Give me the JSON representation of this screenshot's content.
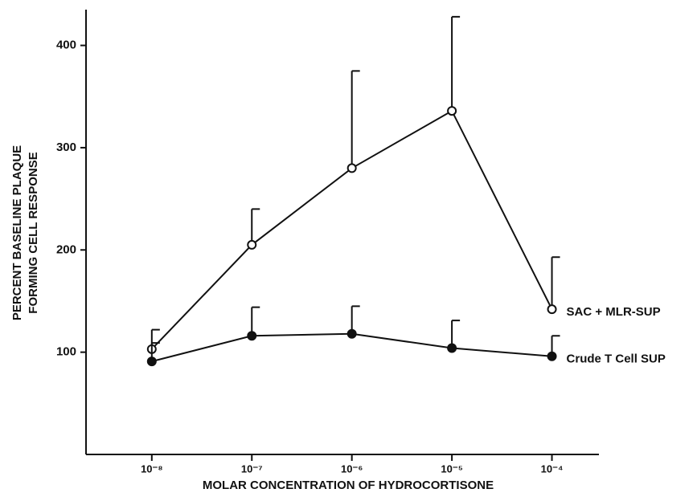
{
  "chart_data": {
    "type": "line",
    "ylabel": [
      "PERCENT BASELINE PLAQUE",
      "FORMING CELL RESPONSE"
    ],
    "xlabel": "MOLAR CONCENTRATION OF HYDROCORTISONE",
    "xscale": "log",
    "x": [
      1e-08,
      1e-07,
      1e-06,
      1e-05,
      0.0001
    ],
    "xlim": [
      2.2e-09,
      0.000295
    ],
    "xticks": [
      {
        "value": 1e-08,
        "label": "10⁻⁸"
      },
      {
        "value": 1e-07,
        "label": "10⁻⁷"
      },
      {
        "value": 1e-06,
        "label": "10⁻⁶"
      },
      {
        "value": 1e-05,
        "label": "10⁻⁵"
      },
      {
        "value": 0.0001,
        "label": "10⁻⁴"
      }
    ],
    "ylim": [
      0,
      435
    ],
    "yticks": [
      100,
      200,
      300,
      400
    ],
    "series": [
      {
        "name": "SAC + MLR-SUP",
        "color": "#111111",
        "marker": "open",
        "values": [
          103,
          205,
          280,
          336,
          142
        ],
        "errors": [
          19,
          35,
          95,
          92,
          51
        ]
      },
      {
        "name": "Crude T Cell SUP",
        "color": "#111111",
        "marker": "filled",
        "values": [
          91,
          116,
          118,
          104,
          96
        ],
        "errors": [
          18,
          28,
          27,
          27,
          20
        ]
      }
    ]
  }
}
